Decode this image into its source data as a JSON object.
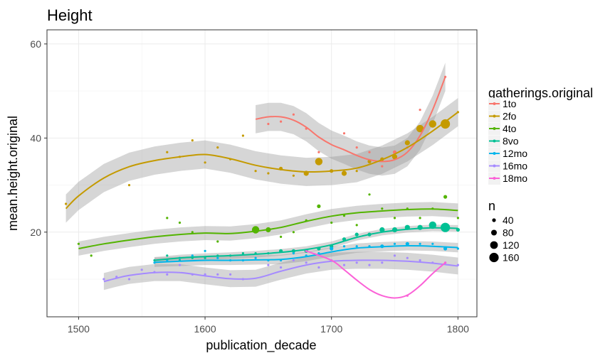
{
  "chart_data": {
    "type": "scatter",
    "title": "Height",
    "xlabel": "publication_decade",
    "ylabel": "mean.height.original",
    "xlim": [
      1475,
      1815
    ],
    "ylim": [
      2,
      63
    ],
    "xticks": [
      1500,
      1600,
      1700,
      1800
    ],
    "yticks": [
      20,
      40,
      60
    ],
    "grid": true,
    "legend_placement": "right",
    "legend_title": "gatherings.original",
    "size_legend_title": "n",
    "size_legend": [
      {
        "label": "40",
        "r": 2.6
      },
      {
        "label": "80",
        "r": 4.0
      },
      {
        "label": "120",
        "r": 5.4
      },
      {
        "label": "160",
        "r": 6.6
      }
    ],
    "series": [
      {
        "name": "1to",
        "color": "#F8766D",
        "points": [
          [
            1650,
            43,
            1
          ],
          [
            1660,
            43.5,
            1
          ],
          [
            1670,
            45,
            1
          ],
          [
            1680,
            42,
            1
          ],
          [
            1690,
            37,
            1
          ],
          [
            1710,
            41,
            1
          ],
          [
            1720,
            38,
            1
          ],
          [
            1730,
            37,
            1
          ],
          [
            1740,
            34,
            1
          ],
          [
            1750,
            37,
            2
          ],
          [
            1760,
            38,
            1
          ],
          [
            1770,
            46,
            1
          ],
          [
            1790,
            53,
            1
          ]
        ],
        "smooth": [
          [
            1640,
            44
          ],
          [
            1650,
            44.5
          ],
          [
            1660,
            44.5
          ],
          [
            1670,
            43.8
          ],
          [
            1680,
            42.3
          ],
          [
            1690,
            40.2
          ],
          [
            1700,
            38.6
          ],
          [
            1710,
            37.5
          ],
          [
            1720,
            36.3
          ],
          [
            1730,
            35.4
          ],
          [
            1740,
            35
          ],
          [
            1750,
            35.4
          ],
          [
            1760,
            37
          ],
          [
            1770,
            40.5
          ],
          [
            1780,
            46
          ],
          [
            1790,
            53
          ]
        ],
        "band": 3
      },
      {
        "name": "2fo",
        "color": "#C49A00",
        "points": [
          [
            1490,
            26,
            1
          ],
          [
            1540,
            30,
            1
          ],
          [
            1570,
            37,
            1
          ],
          [
            1580,
            36,
            1
          ],
          [
            1590,
            39.5,
            1
          ],
          [
            1600,
            34.8,
            1
          ],
          [
            1610,
            38,
            1
          ],
          [
            1620,
            35.5,
            1
          ],
          [
            1630,
            40.5,
            1
          ],
          [
            1640,
            33,
            1
          ],
          [
            1650,
            32.5,
            1
          ],
          [
            1660,
            33.5,
            2
          ],
          [
            1670,
            32,
            1
          ],
          [
            1680,
            32.5,
            3
          ],
          [
            1690,
            35,
            4
          ],
          [
            1700,
            33,
            2
          ],
          [
            1710,
            32.5,
            3
          ],
          [
            1720,
            33,
            1
          ],
          [
            1730,
            35,
            2
          ],
          [
            1740,
            35.5,
            2
          ],
          [
            1750,
            36,
            3
          ],
          [
            1760,
            39,
            3
          ],
          [
            1770,
            42,
            4
          ],
          [
            1780,
            43,
            4
          ],
          [
            1790,
            43,
            5
          ],
          [
            1800,
            45.5,
            1
          ]
        ],
        "smooth": [
          [
            1490,
            25
          ],
          [
            1500,
            27.7
          ],
          [
            1520,
            31.5
          ],
          [
            1540,
            33.9
          ],
          [
            1560,
            35.2
          ],
          [
            1580,
            36
          ],
          [
            1600,
            36.5
          ],
          [
            1620,
            35.6
          ],
          [
            1640,
            34.2
          ],
          [
            1660,
            33.3
          ],
          [
            1680,
            32.8
          ],
          [
            1700,
            33
          ],
          [
            1720,
            33.6
          ],
          [
            1740,
            35.4
          ],
          [
            1760,
            38
          ],
          [
            1780,
            41.5
          ],
          [
            1800,
            45.5
          ]
        ],
        "band": 3
      },
      {
        "name": "4to",
        "color": "#53B400",
        "points": [
          [
            1500,
            17.5,
            1
          ],
          [
            1510,
            15,
            1
          ],
          [
            1570,
            23,
            1
          ],
          [
            1580,
            22,
            1
          ],
          [
            1590,
            20,
            1
          ],
          [
            1610,
            18,
            1
          ],
          [
            1640,
            20.5,
            4
          ],
          [
            1650,
            20.5,
            3
          ],
          [
            1660,
            19,
            1
          ],
          [
            1670,
            20,
            1
          ],
          [
            1680,
            22.5,
            1
          ],
          [
            1690,
            25.5,
            2
          ],
          [
            1700,
            22,
            1
          ],
          [
            1710,
            23.5,
            1
          ],
          [
            1720,
            21.5,
            1
          ],
          [
            1730,
            28,
            1
          ],
          [
            1740,
            25,
            1
          ],
          [
            1750,
            23,
            1
          ],
          [
            1760,
            25,
            1
          ],
          [
            1770,
            23,
            1
          ],
          [
            1780,
            25,
            1
          ],
          [
            1790,
            27.5,
            2
          ],
          [
            1800,
            23,
            1
          ]
        ],
        "smooth": [
          [
            1500,
            16.5
          ],
          [
            1520,
            17.5
          ],
          [
            1540,
            18.3
          ],
          [
            1560,
            19
          ],
          [
            1580,
            19.5
          ],
          [
            1600,
            19.8
          ],
          [
            1620,
            19.7
          ],
          [
            1640,
            20.2
          ],
          [
            1660,
            21
          ],
          [
            1680,
            22.3
          ],
          [
            1700,
            23.4
          ],
          [
            1720,
            24.1
          ],
          [
            1740,
            24.5
          ],
          [
            1760,
            24.8
          ],
          [
            1780,
            24.9
          ],
          [
            1800,
            24.6
          ]
        ],
        "band": 1.5
      },
      {
        "name": "8vo",
        "color": "#00C094",
        "points": [
          [
            1560,
            14,
            1
          ],
          [
            1570,
            15,
            1
          ],
          [
            1580,
            14,
            1
          ],
          [
            1590,
            14.5,
            1
          ],
          [
            1600,
            14.5,
            1
          ],
          [
            1610,
            15,
            1
          ],
          [
            1620,
            15,
            1
          ],
          [
            1630,
            15.5,
            1
          ],
          [
            1640,
            15.5,
            1
          ],
          [
            1650,
            15.5,
            1
          ],
          [
            1660,
            16,
            2
          ],
          [
            1670,
            16,
            2
          ],
          [
            1680,
            16,
            2
          ],
          [
            1690,
            16.5,
            2
          ],
          [
            1700,
            17,
            2
          ],
          [
            1710,
            18.5,
            2
          ],
          [
            1720,
            19.5,
            2
          ],
          [
            1730,
            19.5,
            2
          ],
          [
            1740,
            20.5,
            3
          ],
          [
            1750,
            20.5,
            3
          ],
          [
            1760,
            21,
            3
          ],
          [
            1770,
            21,
            3
          ],
          [
            1780,
            21.5,
            4
          ],
          [
            1790,
            21,
            5
          ],
          [
            1800,
            20.5,
            2
          ]
        ],
        "smooth": [
          [
            1560,
            14
          ],
          [
            1580,
            14.5
          ],
          [
            1600,
            14.8
          ],
          [
            1620,
            15
          ],
          [
            1640,
            15.3
          ],
          [
            1660,
            15.7
          ],
          [
            1680,
            16.3
          ],
          [
            1700,
            17.3
          ],
          [
            1720,
            18.9
          ],
          [
            1740,
            20
          ],
          [
            1760,
            20.6
          ],
          [
            1780,
            20.9
          ],
          [
            1800,
            20.8
          ]
        ],
        "band": 0.7
      },
      {
        "name": "12mo",
        "color": "#00B6EB",
        "points": [
          [
            1560,
            13.5,
            1
          ],
          [
            1570,
            14,
            1
          ],
          [
            1580,
            14.5,
            1
          ],
          [
            1590,
            15,
            1
          ],
          [
            1600,
            16,
            1
          ],
          [
            1610,
            14.5,
            1
          ],
          [
            1620,
            14,
            1
          ],
          [
            1630,
            14,
            1
          ],
          [
            1640,
            14.5,
            1
          ],
          [
            1650,
            14,
            1
          ],
          [
            1660,
            14,
            1
          ],
          [
            1670,
            15.5,
            1
          ],
          [
            1680,
            15,
            1
          ],
          [
            1690,
            15.5,
            1
          ],
          [
            1700,
            16.5,
            2
          ],
          [
            1710,
            17,
            1
          ],
          [
            1720,
            17,
            1
          ],
          [
            1730,
            17,
            1
          ],
          [
            1740,
            17,
            2
          ],
          [
            1750,
            17.5,
            1
          ],
          [
            1760,
            17.5,
            2
          ],
          [
            1770,
            17.5,
            1
          ],
          [
            1780,
            17.5,
            1
          ],
          [
            1790,
            16.5,
            2
          ],
          [
            1800,
            16.5,
            1
          ]
        ],
        "smooth": [
          [
            1560,
            13.6
          ],
          [
            1580,
            13.8
          ],
          [
            1600,
            14
          ],
          [
            1620,
            14
          ],
          [
            1640,
            14.1
          ],
          [
            1660,
            14.2
          ],
          [
            1680,
            14.8
          ],
          [
            1700,
            15.8
          ],
          [
            1720,
            16.6
          ],
          [
            1740,
            16.9
          ],
          [
            1760,
            17.1
          ],
          [
            1780,
            17
          ],
          [
            1800,
            16.7
          ]
        ],
        "band": 1
      },
      {
        "name": "16mo",
        "color": "#A58AFF",
        "points": [
          [
            1520,
            10,
            1
          ],
          [
            1530,
            10.5,
            1
          ],
          [
            1540,
            10,
            1
          ],
          [
            1550,
            12,
            1
          ],
          [
            1560,
            11.5,
            1
          ],
          [
            1570,
            11,
            1
          ],
          [
            1580,
            13,
            1
          ],
          [
            1590,
            11,
            1
          ],
          [
            1600,
            11,
            1
          ],
          [
            1610,
            11,
            1
          ],
          [
            1620,
            11,
            1
          ],
          [
            1630,
            10,
            1
          ],
          [
            1650,
            13,
            1
          ],
          [
            1660,
            12.5,
            1
          ],
          [
            1670,
            14,
            1
          ],
          [
            1680,
            13.5,
            1
          ],
          [
            1690,
            12.5,
            1
          ],
          [
            1700,
            14,
            1
          ],
          [
            1710,
            13,
            1
          ],
          [
            1720,
            13.5,
            1
          ],
          [
            1730,
            13,
            1
          ],
          [
            1740,
            13.5,
            1
          ],
          [
            1750,
            15,
            1
          ],
          [
            1760,
            14.5,
            1
          ],
          [
            1770,
            14,
            1
          ],
          [
            1780,
            13.5,
            1
          ],
          [
            1790,
            13.5,
            1
          ],
          [
            1800,
            13,
            1
          ]
        ],
        "smooth": [
          [
            1520,
            9.5
          ],
          [
            1530,
            10.2
          ],
          [
            1540,
            10.8
          ],
          [
            1560,
            11.4
          ],
          [
            1580,
            11.4
          ],
          [
            1600,
            10.7
          ],
          [
            1620,
            10.1
          ],
          [
            1640,
            10.2
          ],
          [
            1660,
            11.7
          ],
          [
            1680,
            13
          ],
          [
            1700,
            13.8
          ],
          [
            1720,
            14
          ],
          [
            1740,
            14
          ],
          [
            1760,
            13.8
          ],
          [
            1780,
            13.4
          ],
          [
            1800,
            12.8
          ]
        ],
        "band": 1.8
      },
      {
        "name": "18mo",
        "color": "#FB61D7",
        "points": [
          [
            1680,
            16,
            1
          ],
          [
            1760,
            6.5,
            1
          ],
          [
            1790,
            13.5,
            1
          ]
        ],
        "smooth": [
          [
            1680,
            16
          ],
          [
            1700,
            14
          ],
          [
            1710,
            12
          ],
          [
            1720,
            9.8
          ],
          [
            1730,
            7.8
          ],
          [
            1740,
            6.5
          ],
          [
            1750,
            6
          ],
          [
            1760,
            6.6
          ],
          [
            1770,
            8.6
          ],
          [
            1780,
            11.2
          ],
          [
            1790,
            13.5
          ]
        ],
        "band": 0
      }
    ]
  }
}
